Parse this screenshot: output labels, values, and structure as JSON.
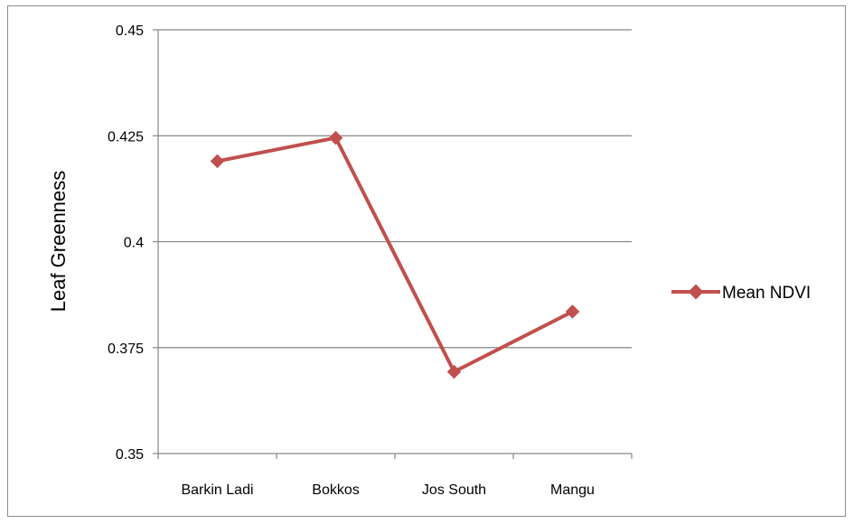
{
  "chart_data": {
    "type": "line",
    "categories": [
      "Barkin Ladi",
      "Bokkos",
      "Jos South",
      "Mangu"
    ],
    "series": [
      {
        "name": "Mean NDVI",
        "values": [
          0.419,
          0.4245,
          0.3693,
          0.3835
        ],
        "color": "#C0504D"
      }
    ],
    "xlabel": "",
    "ylabel": "Leaf Greenness",
    "ylim": [
      0.35,
      0.45
    ],
    "yticks": [
      "0.35",
      "0.375",
      "0.4",
      "0.425",
      "0.45"
    ],
    "grid": true,
    "legend": "right"
  }
}
